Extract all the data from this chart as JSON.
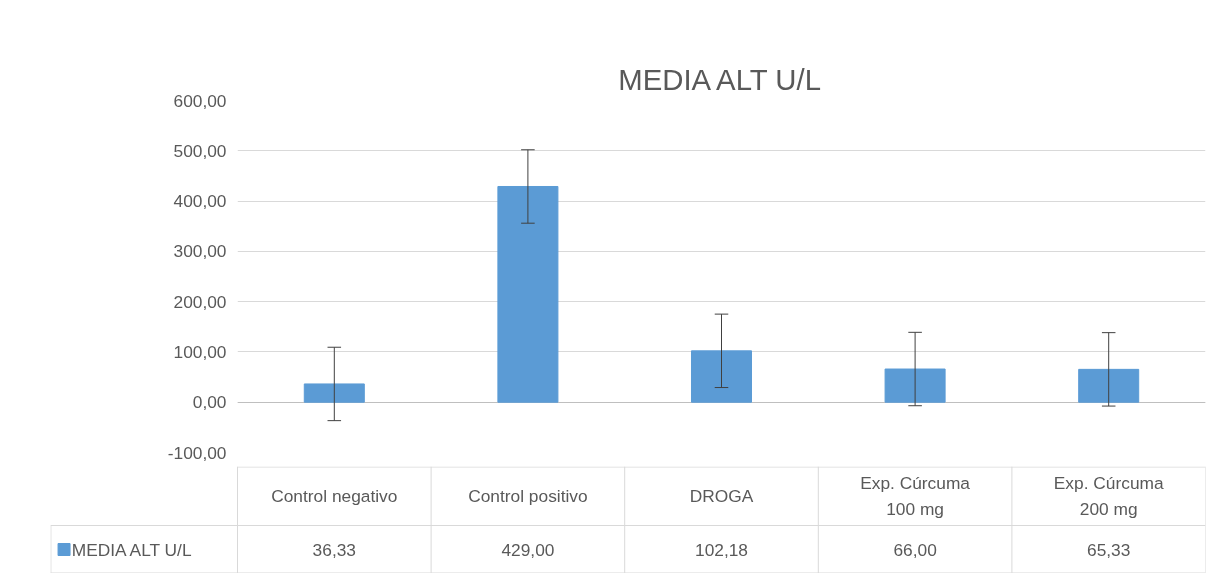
{
  "chart_data": {
    "type": "bar",
    "title": "MEDIA ALT U/L",
    "categories": [
      "Control negativo",
      "Control positivo",
      "DROGA",
      "Exp. Cúrcuma 100 mg",
      "Exp. Cúrcuma 200 mg"
    ],
    "series": [
      {
        "name": "MEDIA ALT U/L",
        "color": "#5b9bd5",
        "values": [
          36.33,
          429.0,
          102.18,
          66.0,
          65.33
        ],
        "errors": [
          73,
          73,
          73,
          73,
          73
        ],
        "value_labels": [
          "36,33",
          "429,00",
          "102,18",
          "66,00",
          "65,33"
        ]
      }
    ],
    "ylim": [
      -100,
      600
    ],
    "yticks": [
      {
        "value": -100,
        "label": "-100,00"
      },
      {
        "value": 0,
        "label": "0,00"
      },
      {
        "value": 100,
        "label": "100,00"
      },
      {
        "value": 200,
        "label": "200,00"
      },
      {
        "value": 300,
        "label": "300,00"
      },
      {
        "value": 400,
        "label": "400,00"
      },
      {
        "value": 500,
        "label": "500,00"
      },
      {
        "value": 600,
        "label": "600,00"
      }
    ],
    "grid": "y",
    "legend": "bottom"
  }
}
